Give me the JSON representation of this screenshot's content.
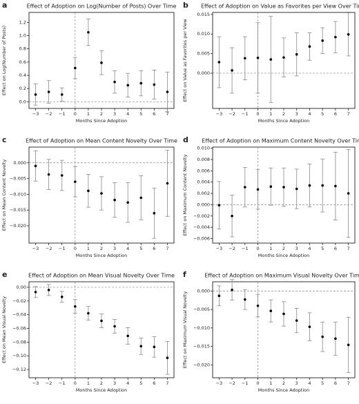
{
  "chart_data": [
    {
      "type": "errorbar",
      "panel_label": "a",
      "title": "Effect of Adoption on Log(Number of Posts) Over Time",
      "x_label": "Months Since Adoption",
      "y_label": "Effect on Log(Number of Posts)",
      "x": [
        -3,
        -2,
        -1,
        0,
        1,
        2,
        3,
        4,
        5,
        6,
        7
      ],
      "values": [
        0.11,
        0.15,
        0.11,
        0.51,
        1.05,
        0.59,
        0.3,
        0.25,
        0.28,
        0.26,
        0.15
      ],
      "errors": [
        0.16,
        0.17,
        0.1,
        0.16,
        0.2,
        0.18,
        0.17,
        0.18,
        0.19,
        0.22,
        0.3
      ],
      "xlim": [
        -3.5,
        7.5
      ],
      "xticks": [
        {
          "value": -3,
          "label": "−3"
        },
        {
          "value": -2,
          "label": "−2"
        },
        {
          "value": -1,
          "label": "−1"
        },
        0,
        1,
        2,
        3,
        4,
        5,
        6,
        7
      ],
      "ylim": [
        -0.1,
        1.35
      ],
      "yticks": [
        {
          "value": 0,
          "label": "0.0"
        },
        0.2,
        0.4,
        0.6,
        0.8,
        {
          "value": 1,
          "label": "1.0"
        },
        1.2
      ],
      "hline": 0,
      "vline": 0,
      "color": "#000000"
    },
    {
      "type": "errorbar",
      "panel_label": "b",
      "title": "Effect of Adoption on Value as Favorites per View Over Time",
      "x_label": "Months Since Adoption",
      "y_label": "Effect on Value as Favorites per View",
      "x": [
        -3,
        -2,
        -1,
        0,
        1,
        2,
        3,
        4,
        5,
        6,
        7
      ],
      "values": [
        0.0028,
        0.0007,
        0.0038,
        0.0039,
        0.0035,
        0.004,
        0.0048,
        0.0068,
        0.0083,
        0.0092,
        0.0099
      ],
      "errors": [
        0.0065,
        0.0058,
        0.0055,
        0.009,
        0.011,
        0.005,
        0.0055,
        0.0035,
        0.0033,
        0.004,
        0.0055
      ],
      "xlim": [
        -3.5,
        7.5
      ],
      "xticks": [
        {
          "value": -3,
          "label": "−3"
        },
        {
          "value": -2,
          "label": "−2"
        },
        {
          "value": -1,
          "label": "−1"
        },
        0,
        1,
        2,
        3,
        4,
        5,
        6,
        7
      ],
      "ylim": [
        -0.009,
        0.0155
      ],
      "yticks": [
        {
          "value": 0,
          "label": "0.000"
        },
        0.005,
        {
          "value": 0.01,
          "label": "0.010"
        },
        0.015
      ],
      "hline": 0,
      "vline": 0,
      "color": "#000000"
    },
    {
      "type": "errorbar",
      "panel_label": "c",
      "title": "Effect of Adoption on Mean Content Novelty Over Time",
      "x_label": "Months Since Adoption",
      "y_label": "Effect on Mean Content Novelty",
      "x": [
        -3,
        -2,
        -1,
        0,
        1,
        2,
        3,
        4,
        5,
        6,
        7
      ],
      "values": [
        -0.001,
        -0.0037,
        -0.004,
        -0.006,
        -0.0089,
        -0.0097,
        -0.0118,
        -0.0126,
        -0.0111,
        -0.016,
        -0.0065
      ],
      "errors": [
        0.0048,
        0.0048,
        0.0048,
        0.0048,
        0.0052,
        0.0053,
        0.0055,
        0.0063,
        0.007,
        0.008,
        0.0105
      ],
      "xlim": [
        -3.5,
        7.5
      ],
      "xticks": [
        {
          "value": -3,
          "label": "−3"
        },
        {
          "value": -2,
          "label": "−2"
        },
        {
          "value": -1,
          "label": "−1"
        },
        0,
        1,
        2,
        3,
        4,
        5,
        6,
        7
      ],
      "ylim": [
        -0.0255,
        0.005
      ],
      "yticks": [
        {
          "value": -0.02,
          "label": "−0.020"
        },
        {
          "value": -0.015,
          "label": "−0.015"
        },
        {
          "value": -0.01,
          "label": "−0.010"
        },
        {
          "value": -0.005,
          "label": "−0.005"
        },
        {
          "value": 0,
          "label": "0.000"
        }
      ],
      "hline": 0,
      "vline": 0,
      "color": "#000000"
    },
    {
      "type": "errorbar",
      "panel_label": "d",
      "title": "Effect of Adoption on Maximum Content Novelty Over Time",
      "x_label": "Months Since Adoption",
      "y_label": "Effect on Maximum Content Novelty",
      "x": [
        -3,
        -2,
        -1,
        0,
        1,
        2,
        3,
        4,
        5,
        6,
        7
      ],
      "values": [
        -0.0001,
        -0.002,
        0.0031,
        0.0027,
        0.0032,
        0.0031,
        0.0028,
        0.0034,
        0.0034,
        0.0033,
        0.002
      ],
      "errors": [
        0.0042,
        0.0037,
        0.0035,
        0.0035,
        0.0033,
        0.0034,
        0.0035,
        0.0038,
        0.0047,
        0.006,
        0.0078
      ],
      "xlim": [
        -3.5,
        7.5
      ],
      "xticks": [
        {
          "value": -3,
          "label": "−3"
        },
        {
          "value": -2,
          "label": "−2"
        },
        {
          "value": -1,
          "label": "−1"
        },
        0,
        1,
        2,
        3,
        4,
        5,
        6,
        7
      ],
      "ylim": [
        -0.0068,
        0.0102
      ],
      "yticks": [
        {
          "value": -0.006,
          "label": "−0.006"
        },
        {
          "value": -0.004,
          "label": "−0.004"
        },
        {
          "value": -0.002,
          "label": "−0.002"
        },
        {
          "value": 0,
          "label": "0.000"
        },
        0.002,
        0.004,
        0.006,
        0.008,
        {
          "value": 0.01,
          "label": "0.010"
        }
      ],
      "hline": 0,
      "vline": 0,
      "color": "#000000"
    },
    {
      "type": "errorbar",
      "panel_label": "e",
      "title": "Effect of Adoption on Mean Visual Novelty Over Time",
      "x_label": "Months Since Adoption",
      "y_label": "Effect on Mean Visual Novelty",
      "x": [
        -3,
        -2,
        -1,
        0,
        1,
        2,
        3,
        4,
        5,
        6,
        7
      ],
      "values": [
        -0.007,
        -0.004,
        -0.014,
        -0.028,
        -0.038,
        -0.049,
        -0.057,
        -0.071,
        -0.086,
        -0.087,
        -0.103
      ],
      "errors": [
        0.008,
        0.008,
        0.008,
        0.01,
        0.01,
        0.01,
        0.01,
        0.012,
        0.012,
        0.015,
        0.024
      ],
      "xlim": [
        -3.5,
        7.5
      ],
      "xticks": [
        {
          "value": -3,
          "label": "−3"
        },
        {
          "value": -2,
          "label": "−2"
        },
        {
          "value": -1,
          "label": "−1"
        },
        0,
        1,
        2,
        3,
        4,
        5,
        6,
        7
      ],
      "ylim": [
        -0.132,
        0.008
      ],
      "yticks": [
        {
          "value": -0.12,
          "label": "−0.12"
        },
        {
          "value": -0.1,
          "label": "−0.10"
        },
        {
          "value": -0.08,
          "label": "−0.08"
        },
        {
          "value": -0.06,
          "label": "−0.06"
        },
        {
          "value": -0.04,
          "label": "−0.04"
        },
        {
          "value": -0.02,
          "label": "−0.02"
        },
        {
          "value": 0,
          "label": "0.00"
        }
      ],
      "hline": 0,
      "vline": 0,
      "color": "#000000"
    },
    {
      "type": "errorbar",
      "panel_label": "f",
      "title": "Effect of Adoption on Maximum Visual Novelty Over Time",
      "x_label": "Months Since Adoption",
      "y_label": "Effect on Maximum Visual Novelty",
      "x": [
        -3,
        -2,
        -1,
        0,
        1,
        2,
        3,
        4,
        5,
        6,
        7
      ],
      "values": [
        -0.0013,
        0.0003,
        -0.0023,
        -0.004,
        -0.0054,
        -0.0062,
        -0.008,
        -0.0097,
        -0.0124,
        -0.0129,
        -0.0146
      ],
      "errors": [
        0.0027,
        0.0028,
        0.0027,
        0.003,
        0.003,
        0.0033,
        0.0033,
        0.0038,
        0.004,
        0.0045,
        0.0075
      ],
      "xlim": [
        -3.5,
        7.5
      ],
      "xticks": [
        {
          "value": -3,
          "label": "−3"
        },
        {
          "value": -2,
          "label": "−2"
        },
        {
          "value": -1,
          "label": "−1"
        },
        0,
        1,
        2,
        3,
        4,
        5,
        6,
        7
      ],
      "ylim": [
        -0.0235,
        0.0025
      ],
      "yticks": [
        {
          "value": -0.02,
          "label": "−0.020"
        },
        {
          "value": -0.015,
          "label": "−0.015"
        },
        {
          "value": -0.01,
          "label": "−0.010"
        },
        {
          "value": -0.005,
          "label": "−0.005"
        },
        {
          "value": 0,
          "label": "0.000"
        }
      ],
      "hline": 0,
      "vline": 0,
      "color": "#000000"
    }
  ]
}
